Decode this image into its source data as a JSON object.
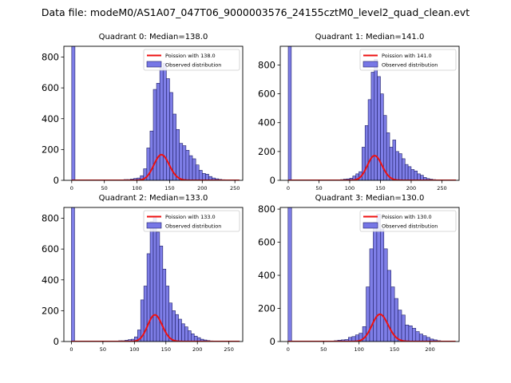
{
  "suptitle": "Data file: modeM0/AS1A07_047T06_9000003576_24155cztM0_level2_quad_clean.evt",
  "colors": {
    "bar_fill": "#7777e6",
    "bar_edge": "#1f1f66",
    "fit_line": "#ee1111",
    "axes": "#000000"
  },
  "chart_data": [
    {
      "type": "bar",
      "title": "Quadrant 0: Median=138.0",
      "legend": [
        "Poission with 138.0",
        "Observed distribution"
      ],
      "legend_position": "top-right",
      "xticks": [
        0,
        50,
        100,
        150,
        200,
        250
      ],
      "yticks": [
        0,
        200,
        400,
        600,
        800
      ],
      "xlim": [
        -12,
        262
      ],
      "ylim": [
        0,
        870
      ],
      "bin_width": 5,
      "outlier_bin": {
        "x": 0,
        "value": 870
      },
      "mean": 138,
      "scale": 4900,
      "bins": [
        [
          75,
          3
        ],
        [
          80,
          5
        ],
        [
          85,
          5
        ],
        [
          90,
          8
        ],
        [
          95,
          12
        ],
        [
          100,
          15
        ],
        [
          105,
          30
        ],
        [
          110,
          75
        ],
        [
          115,
          210
        ],
        [
          120,
          320
        ],
        [
          125,
          590
        ],
        [
          130,
          630
        ],
        [
          135,
          730
        ],
        [
          140,
          760
        ],
        [
          145,
          660
        ],
        [
          150,
          570
        ],
        [
          155,
          430
        ],
        [
          160,
          330
        ],
        [
          165,
          240
        ],
        [
          170,
          225
        ],
        [
          175,
          195
        ],
        [
          180,
          160
        ],
        [
          185,
          140
        ],
        [
          190,
          100
        ],
        [
          195,
          65
        ],
        [
          200,
          45
        ],
        [
          205,
          40
        ],
        [
          210,
          25
        ],
        [
          215,
          15
        ],
        [
          220,
          10
        ],
        [
          225,
          6
        ],
        [
          230,
          4
        ],
        [
          235,
          3
        ]
      ]
    },
    {
      "type": "bar",
      "title": "Quadrant 1: Median=141.0",
      "legend": [
        "Poission with 141.0",
        "Observed distribution"
      ],
      "legend_position": "top-right",
      "xticks": [
        0,
        50,
        100,
        150,
        200,
        250
      ],
      "yticks": [
        0,
        200,
        400,
        600,
        800
      ],
      "xlim": [
        -13,
        278
      ],
      "ylim": [
        0,
        930
      ],
      "bin_width": 5,
      "outlier_bin": {
        "x": 0,
        "value": 930
      },
      "mean": 141,
      "scale": 5100,
      "bins": [
        [
          80,
          3
        ],
        [
          85,
          5
        ],
        [
          90,
          8
        ],
        [
          95,
          10
        ],
        [
          100,
          15
        ],
        [
          105,
          30
        ],
        [
          110,
          45
        ],
        [
          115,
          60
        ],
        [
          120,
          230
        ],
        [
          125,
          380
        ],
        [
          130,
          560
        ],
        [
          135,
          750
        ],
        [
          140,
          840
        ],
        [
          145,
          720
        ],
        [
          150,
          600
        ],
        [
          155,
          450
        ],
        [
          160,
          330
        ],
        [
          165,
          230
        ],
        [
          170,
          280
        ],
        [
          175,
          200
        ],
        [
          180,
          185
        ],
        [
          185,
          150
        ],
        [
          190,
          110
        ],
        [
          195,
          95
        ],
        [
          200,
          75
        ],
        [
          205,
          65
        ],
        [
          210,
          45
        ],
        [
          215,
          35
        ],
        [
          220,
          20
        ],
        [
          225,
          12
        ],
        [
          230,
          8
        ],
        [
          235,
          5
        ],
        [
          240,
          3
        ],
        [
          245,
          2
        ]
      ]
    },
    {
      "type": "bar",
      "title": "Quadrant 2: Median=133.0",
      "legend": [
        "Poission with 133.0",
        "Observed distribution"
      ],
      "legend_position": "top-right",
      "xticks": [
        0,
        50,
        100,
        150,
        200,
        250
      ],
      "yticks": [
        0,
        200,
        400,
        600,
        800
      ],
      "xlim": [
        -12,
        272
      ],
      "ylim": [
        0,
        870
      ],
      "bin_width": 5,
      "outlier_bin": {
        "x": 0,
        "value": 870
      },
      "mean": 133,
      "scale": 5000,
      "bins": [
        [
          70,
          3
        ],
        [
          75,
          5
        ],
        [
          80,
          5
        ],
        [
          85,
          8
        ],
        [
          90,
          12
        ],
        [
          95,
          15
        ],
        [
          100,
          30
        ],
        [
          105,
          75
        ],
        [
          110,
          270
        ],
        [
          115,
          360
        ],
        [
          120,
          570
        ],
        [
          125,
          780
        ],
        [
          130,
          810
        ],
        [
          135,
          710
        ],
        [
          140,
          620
        ],
        [
          145,
          470
        ],
        [
          150,
          360
        ],
        [
          155,
          250
        ],
        [
          160,
          200
        ],
        [
          165,
          175
        ],
        [
          170,
          145
        ],
        [
          175,
          115
        ],
        [
          180,
          95
        ],
        [
          185,
          70
        ],
        [
          190,
          50
        ],
        [
          195,
          35
        ],
        [
          200,
          25
        ],
        [
          205,
          15
        ],
        [
          210,
          10
        ],
        [
          215,
          6
        ],
        [
          220,
          4
        ],
        [
          225,
          3
        ]
      ]
    },
    {
      "type": "bar",
      "title": "Quadrant 3: Median=130.0",
      "legend": [
        "Poission with 130.0",
        "Observed distribution"
      ],
      "legend_position": "top-right",
      "xticks": [
        0,
        50,
        100,
        150,
        200
      ],
      "yticks": [
        0,
        200,
        400,
        600,
        800
      ],
      "xlim": [
        -11,
        241
      ],
      "ylim": [
        0,
        810
      ],
      "bin_width": 5,
      "outlier_bin": {
        "x": 0,
        "value": 810
      },
      "mean": 130,
      "scale": 4700,
      "bins": [
        [
          60,
          3
        ],
        [
          65,
          5
        ],
        [
          70,
          8
        ],
        [
          75,
          10
        ],
        [
          80,
          12
        ],
        [
          85,
          25
        ],
        [
          90,
          30
        ],
        [
          95,
          40
        ],
        [
          100,
          50
        ],
        [
          105,
          90
        ],
        [
          110,
          330
        ],
        [
          115,
          560
        ],
        [
          120,
          720
        ],
        [
          125,
          770
        ],
        [
          130,
          680
        ],
        [
          135,
          560
        ],
        [
          140,
          430
        ],
        [
          145,
          330
        ],
        [
          150,
          260
        ],
        [
          155,
          190
        ],
        [
          160,
          160
        ],
        [
          165,
          100
        ],
        [
          170,
          95
        ],
        [
          175,
          80
        ],
        [
          180,
          60
        ],
        [
          185,
          45
        ],
        [
          190,
          35
        ],
        [
          195,
          25
        ],
        [
          200,
          15
        ],
        [
          205,
          10
        ],
        [
          210,
          5
        ]
      ]
    }
  ]
}
